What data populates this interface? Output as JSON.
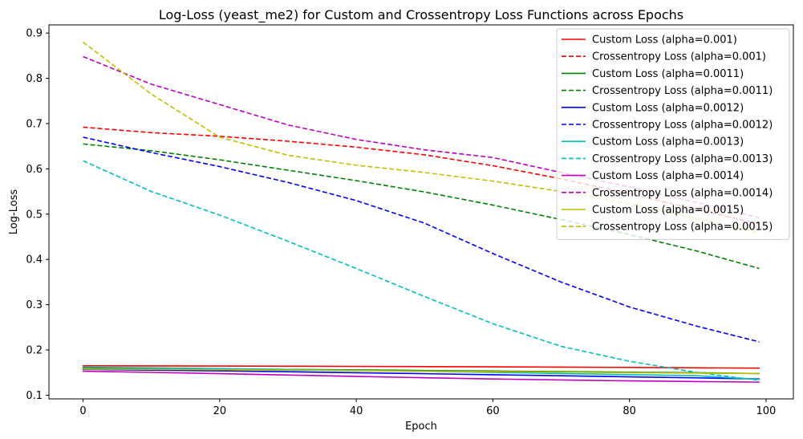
{
  "chart_data": {
    "type": "line",
    "title": "Log-Loss (yeast_me2) for Custom and Crossentropy Loss Functions across Epochs",
    "xlabel": "Epoch",
    "ylabel": "Log-Loss",
    "xlim": [
      -5,
      104
    ],
    "ylim": [
      0.092,
      0.918
    ],
    "xticks": [
      0,
      20,
      40,
      60,
      80,
      100
    ],
    "yticks": [
      0.1,
      0.2,
      0.3,
      0.4,
      0.5,
      0.6,
      0.7,
      0.8,
      0.9
    ],
    "grid": false,
    "legend_position": "top-right",
    "x": [
      0,
      10,
      20,
      30,
      40,
      50,
      60,
      70,
      80,
      90,
      99
    ],
    "series": [
      {
        "name": "Custom Loss (alpha=0.001)",
        "color": "#ff0000",
        "style": "solid",
        "values": [
          0.165,
          0.1648,
          0.1645,
          0.1642,
          0.1638,
          0.1633,
          0.1627,
          0.1621,
          0.1614,
          0.1606,
          0.16
        ]
      },
      {
        "name": "Crossentropy Loss (alpha=0.001)",
        "color": "#ff0000",
        "style": "dashed",
        "values": [
          0.692,
          0.68,
          0.672,
          0.661,
          0.648,
          0.631,
          0.607,
          0.578,
          0.545,
          0.51,
          0.478
        ]
      },
      {
        "name": "Custom Loss (alpha=0.0011)",
        "color": "#008000",
        "style": "solid",
        "values": [
          0.16,
          0.1592,
          0.1582,
          0.1571,
          0.1559,
          0.1547,
          0.1534,
          0.1522,
          0.1509,
          0.1497,
          0.148
        ]
      },
      {
        "name": "Crossentropy Loss (alpha=0.0011)",
        "color": "#008000",
        "style": "dashed",
        "values": [
          0.655,
          0.64,
          0.62,
          0.597,
          0.574,
          0.549,
          0.52,
          0.488,
          0.455,
          0.418,
          0.38
        ]
      },
      {
        "name": "Custom Loss (alpha=0.0012)",
        "color": "#0000ff",
        "style": "solid",
        "values": [
          0.157,
          0.1555,
          0.1538,
          0.1519,
          0.1498,
          0.1476,
          0.1453,
          0.143,
          0.1406,
          0.1383,
          0.136
        ]
      },
      {
        "name": "Crossentropy Loss (alpha=0.0012)",
        "color": "#0000ff",
        "style": "dashed",
        "values": [
          0.67,
          0.636,
          0.605,
          0.57,
          0.53,
          0.48,
          0.413,
          0.35,
          0.295,
          0.252,
          0.218
        ]
      },
      {
        "name": "Custom Loss (alpha=0.0013)",
        "color": "#00bfbf",
        "style": "solid",
        "values": [
          0.162,
          0.1605,
          0.1588,
          0.157,
          0.155,
          0.1528,
          0.1505,
          0.148,
          0.1455,
          0.143,
          0.135
        ]
      },
      {
        "name": "Crossentropy Loss (alpha=0.0013)",
        "color": "#00bfbf",
        "style": "dashed",
        "values": [
          0.618,
          0.55,
          0.498,
          0.44,
          0.38,
          0.318,
          0.258,
          0.208,
          0.175,
          0.15,
          0.133
        ]
      },
      {
        "name": "Custom Loss (alpha=0.0014)",
        "color": "#bf00bf",
        "style": "solid",
        "values": [
          0.153,
          0.1505,
          0.1477,
          0.1447,
          0.1416,
          0.1387,
          0.136,
          0.1337,
          0.1318,
          0.1302,
          0.129
        ]
      },
      {
        "name": "Crossentropy Loss (alpha=0.0014)",
        "color": "#bf00bf",
        "style": "dashed",
        "values": [
          0.848,
          0.787,
          0.742,
          0.697,
          0.665,
          0.642,
          0.625,
          0.592,
          0.56,
          0.525,
          0.492
        ]
      },
      {
        "name": "Custom Loss (alpha=0.0015)",
        "color": "#bfbf00",
        "style": "solid",
        "values": [
          0.158,
          0.1572,
          0.1563,
          0.1553,
          0.1543,
          0.1532,
          0.1521,
          0.151,
          0.1499,
          0.1489,
          0.148
        ]
      },
      {
        "name": "Crossentropy Loss (alpha=0.0015)",
        "color": "#bfbf00",
        "style": "dashed",
        "values": [
          0.88,
          0.765,
          0.67,
          0.63,
          0.608,
          0.592,
          0.573,
          0.55,
          0.523,
          0.49,
          0.458
        ]
      }
    ]
  }
}
